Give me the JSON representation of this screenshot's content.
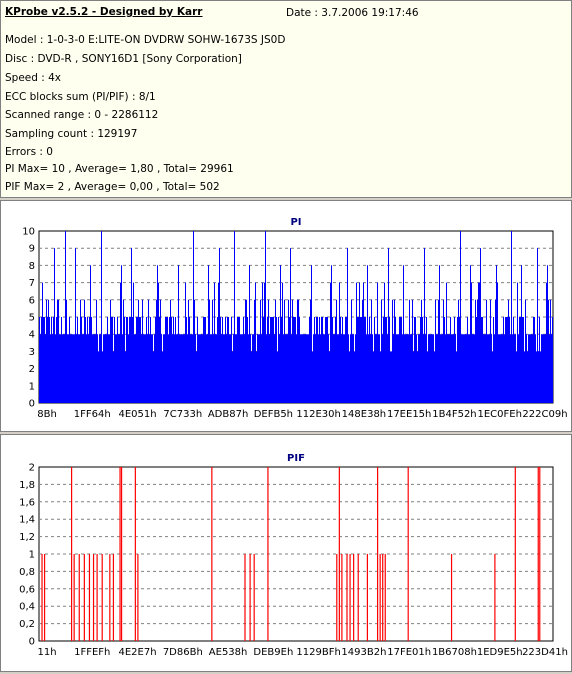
{
  "info": {
    "title": "KProbe v2.5.2 - Designed by Karr",
    "date": "Date : 3.7.2006 19:17:46",
    "lines": [
      "Model : 1-0-3-0 E:LITE-ON DVDRW SOHW-1673S JS0D",
      "Disc : DVD-R , SONY16D1 [Sony Corporation]",
      "Speed : 4x",
      "ECC blocks sum (PI/PIF) : 8/1",
      "Scanned range : 0 - 2286112",
      "Sampling count : 129197",
      "Errors : 0",
      "PI Max= 10 , Average= 1,80 , Total= 29961",
      "PIF Max= 2 , Average= 0,00 , Total= 502"
    ]
  },
  "colors": {
    "pi_fill": "#0000ff",
    "pif_bar": "#ff0000",
    "grid": "#808080",
    "title": "#000080",
    "info_bg": "#fffff0",
    "background": "#d4d0c8"
  },
  "chart_data": [
    {
      "type": "area",
      "title": "PI",
      "ylim": [
        0,
        10
      ],
      "yticks": [
        "0",
        "1",
        "2",
        "3",
        "4",
        "5",
        "6",
        "7",
        "8",
        "9",
        "10"
      ],
      "xticks": [
        "8Bh",
        "1FF64h",
        "4E051h",
        "7C733h",
        "ADB87h",
        "DEFB5h",
        "112E30h",
        "148E38h",
        "17EE15h",
        "1B4F52h",
        "1EC0FEh",
        "222C09h"
      ],
      "grid": "dashed horizontal",
      "summary": {
        "max": 10,
        "average": 1.8,
        "total": 29961
      },
      "base_level": 4,
      "peaks": [
        {
          "x": 0.05,
          "y": 10
        },
        {
          "x": 0.12,
          "y": 10
        },
        {
          "x": 0.3,
          "y": 10
        },
        {
          "x": 0.38,
          "y": 10
        },
        {
          "x": 0.44,
          "y": 10
        },
        {
          "x": 0.82,
          "y": 10
        },
        {
          "x": 0.92,
          "y": 10
        },
        {
          "x": 0.03,
          "y": 9
        },
        {
          "x": 0.07,
          "y": 9
        },
        {
          "x": 0.18,
          "y": 9
        },
        {
          "x": 0.35,
          "y": 9
        },
        {
          "x": 0.49,
          "y": 9
        },
        {
          "x": 0.6,
          "y": 9
        },
        {
          "x": 0.68,
          "y": 9
        },
        {
          "x": 0.75,
          "y": 9
        },
        {
          "x": 0.86,
          "y": 9
        },
        {
          "x": 0.97,
          "y": 9
        },
        {
          "x": 0.1,
          "y": 8
        },
        {
          "x": 0.16,
          "y": 8
        },
        {
          "x": 0.23,
          "y": 8
        },
        {
          "x": 0.27,
          "y": 8
        },
        {
          "x": 0.33,
          "y": 8
        },
        {
          "x": 0.41,
          "y": 8
        },
        {
          "x": 0.47,
          "y": 8
        },
        {
          "x": 0.53,
          "y": 8
        },
        {
          "x": 0.57,
          "y": 8
        },
        {
          "x": 0.64,
          "y": 8
        },
        {
          "x": 0.71,
          "y": 8
        },
        {
          "x": 0.78,
          "y": 8
        },
        {
          "x": 0.84,
          "y": 8
        },
        {
          "x": 0.89,
          "y": 8
        },
        {
          "x": 0.94,
          "y": 8
        },
        {
          "x": 0.99,
          "y": 8
        }
      ]
    },
    {
      "type": "bar",
      "title": "PIF",
      "ylim": [
        0,
        2
      ],
      "yticks": [
        "0",
        "0,2",
        "0,4",
        "0,6",
        "0,8",
        "1",
        "1,2",
        "1,4",
        "1,6",
        "1,8",
        "2"
      ],
      "xticks": [
        "11h",
        "1FFEFh",
        "4E2E7h",
        "7D86Bh",
        "AE538h",
        "DEB9Eh",
        "1129BFh",
        "1493B2h",
        "17FE01h",
        "1B6708h",
        "1ED9E5h",
        "223D41h"
      ],
      "grid": "dashed horizontal",
      "summary": {
        "max": 2,
        "average": 0.0,
        "total": 502
      },
      "points": [
        {
          "x": 0.002,
          "y": 1
        },
        {
          "x": 0.007,
          "y": 1
        },
        {
          "x": 0.06,
          "y": 2
        },
        {
          "x": 0.065,
          "y": 1
        },
        {
          "x": 0.075,
          "y": 1
        },
        {
          "x": 0.085,
          "y": 1
        },
        {
          "x": 0.095,
          "y": 1
        },
        {
          "x": 0.103,
          "y": 1
        },
        {
          "x": 0.11,
          "y": 1
        },
        {
          "x": 0.12,
          "y": 1
        },
        {
          "x": 0.135,
          "y": 1
        },
        {
          "x": 0.142,
          "y": 1
        },
        {
          "x": 0.155,
          "y": 2
        },
        {
          "x": 0.158,
          "y": 2
        },
        {
          "x": 0.185,
          "y": 2
        },
        {
          "x": 0.19,
          "y": 1
        },
        {
          "x": 0.335,
          "y": 2
        },
        {
          "x": 0.4,
          "y": 1
        },
        {
          "x": 0.41,
          "y": 1
        },
        {
          "x": 0.418,
          "y": 1
        },
        {
          "x": 0.445,
          "y": 2
        },
        {
          "x": 0.58,
          "y": 1
        },
        {
          "x": 0.585,
          "y": 2
        },
        {
          "x": 0.59,
          "y": 1
        },
        {
          "x": 0.6,
          "y": 1
        },
        {
          "x": 0.606,
          "y": 1
        },
        {
          "x": 0.613,
          "y": 1
        },
        {
          "x": 0.622,
          "y": 1
        },
        {
          "x": 0.64,
          "y": 1
        },
        {
          "x": 0.66,
          "y": 2
        },
        {
          "x": 0.665,
          "y": 1
        },
        {
          "x": 0.67,
          "y": 1
        },
        {
          "x": 0.675,
          "y": 1
        },
        {
          "x": 0.72,
          "y": 2
        },
        {
          "x": 0.805,
          "y": 1
        },
        {
          "x": 0.89,
          "y": 1
        },
        {
          "x": 0.93,
          "y": 2
        },
        {
          "x": 0.975,
          "y": 2
        },
        {
          "x": 0.978,
          "y": 2
        }
      ]
    }
  ]
}
